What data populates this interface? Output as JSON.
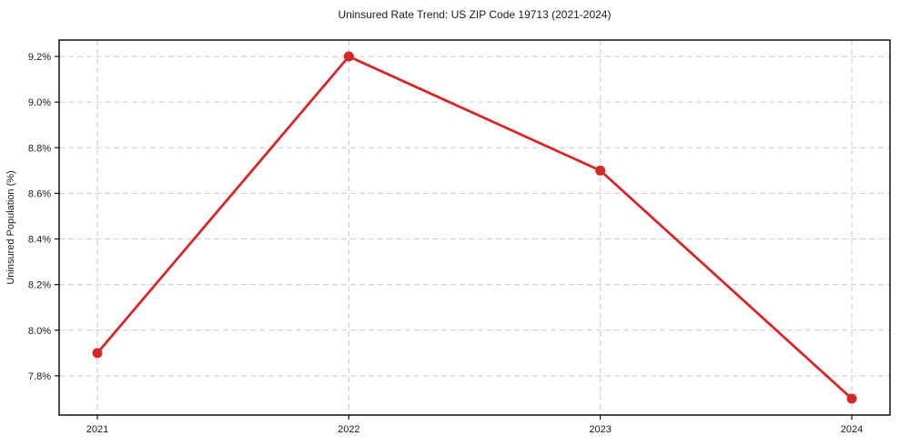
{
  "chart_data": {
    "type": "line",
    "title": "Uninsured Rate Trend: US ZIP Code 19713 (2021-2024)",
    "xlabel": "",
    "ylabel": "Uninsured Population (%)",
    "categories": [
      "2021",
      "2022",
      "2023",
      "2024"
    ],
    "series": [
      {
        "name": "",
        "values": [
          7.9,
          9.2,
          8.7,
          7.7
        ]
      }
    ],
    "y_ticks": [
      7.8,
      8.0,
      8.2,
      8.4,
      8.6,
      8.8,
      9.0,
      9.2
    ],
    "y_tick_labels": [
      "7.8%",
      "8.0%",
      "8.2%",
      "8.4%",
      "8.6%",
      "8.8%",
      "9.0%",
      "9.2%"
    ],
    "x_tick_labels": [
      "2021",
      "2022",
      "2023",
      "2024"
    ],
    "ylim": [
      7.628,
      9.272
    ],
    "grid": true,
    "grid_style": "dashed",
    "legend": false,
    "colors": {
      "line": "#d62728",
      "marker": "#d62728",
      "grid": "#c9c9c9",
      "spine": "#111111",
      "text": "#1a1a1a",
      "background": "#ffffff"
    }
  }
}
